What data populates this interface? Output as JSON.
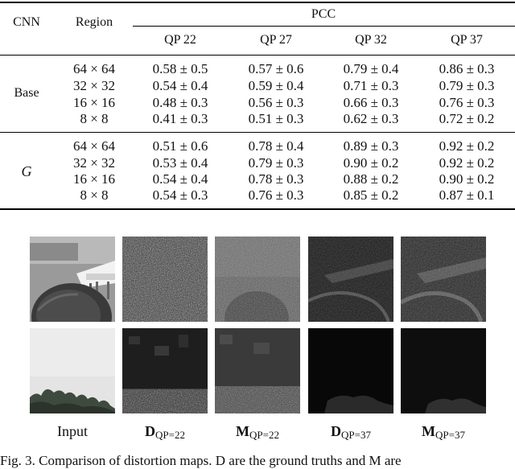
{
  "table": {
    "headers": {
      "cnn": "CNN",
      "region": "Region",
      "pcc": "PCC"
    },
    "qp_labels": [
      "QP 22",
      "QP 27",
      "QP 32",
      "QP 37"
    ],
    "groups": [
      {
        "name": "Base",
        "rows": [
          {
            "region": "64 × 64",
            "values": [
              "0.58 ± 0.5",
              "0.57 ± 0.6",
              "0.79 ± 0.4",
              "0.86 ± 0.3"
            ]
          },
          {
            "region": "32 × 32",
            "values": [
              "0.54 ± 0.4",
              "0.59 ± 0.4",
              "0.71 ± 0.3",
              "0.79 ± 0.3"
            ]
          },
          {
            "region": "16 × 16",
            "values": [
              "0.48 ± 0.3",
              "0.56 ± 0.3",
              "0.66 ± 0.3",
              "0.76 ± 0.3"
            ]
          },
          {
            "region": "8 × 8",
            "values": [
              "0.41 ± 0.3",
              "0.51 ± 0.3",
              "0.62 ± 0.3",
              "0.72 ± 0.2"
            ]
          }
        ]
      },
      {
        "name": "G",
        "rows": [
          {
            "region": "64 × 64",
            "values": [
              "0.51 ± 0.6",
              "0.78 ± 0.4",
              "0.89 ± 0.3",
              "0.92 ± 0.2"
            ]
          },
          {
            "region": "32 × 32",
            "values": [
              "0.53 ± 0.4",
              "0.79 ± 0.3",
              "0.90 ± 0.2",
              "0.92 ± 0.2"
            ]
          },
          {
            "region": "16 × 16",
            "values": [
              "0.54 ± 0.4",
              "0.78 ± 0.3",
              "0.88 ± 0.2",
              "0.90 ± 0.2"
            ]
          },
          {
            "region": "8 × 8",
            "values": [
              "0.54 ± 0.3",
              "0.76 ± 0.3",
              "0.85 ± 0.2",
              "0.87 ± 0.1"
            ]
          }
        ]
      }
    ]
  },
  "figure": {
    "labels": [
      {
        "main": "Input",
        "sub": ""
      },
      {
        "main": "D",
        "sub": "QP=22"
      },
      {
        "main": "M",
        "sub": "QP=22"
      },
      {
        "main": "D",
        "sub": "QP=37"
      },
      {
        "main": "M",
        "sub": "QP=37"
      }
    ],
    "caption": "Fig. 3.   Comparison of distortion maps. D are the ground truths and M are"
  }
}
